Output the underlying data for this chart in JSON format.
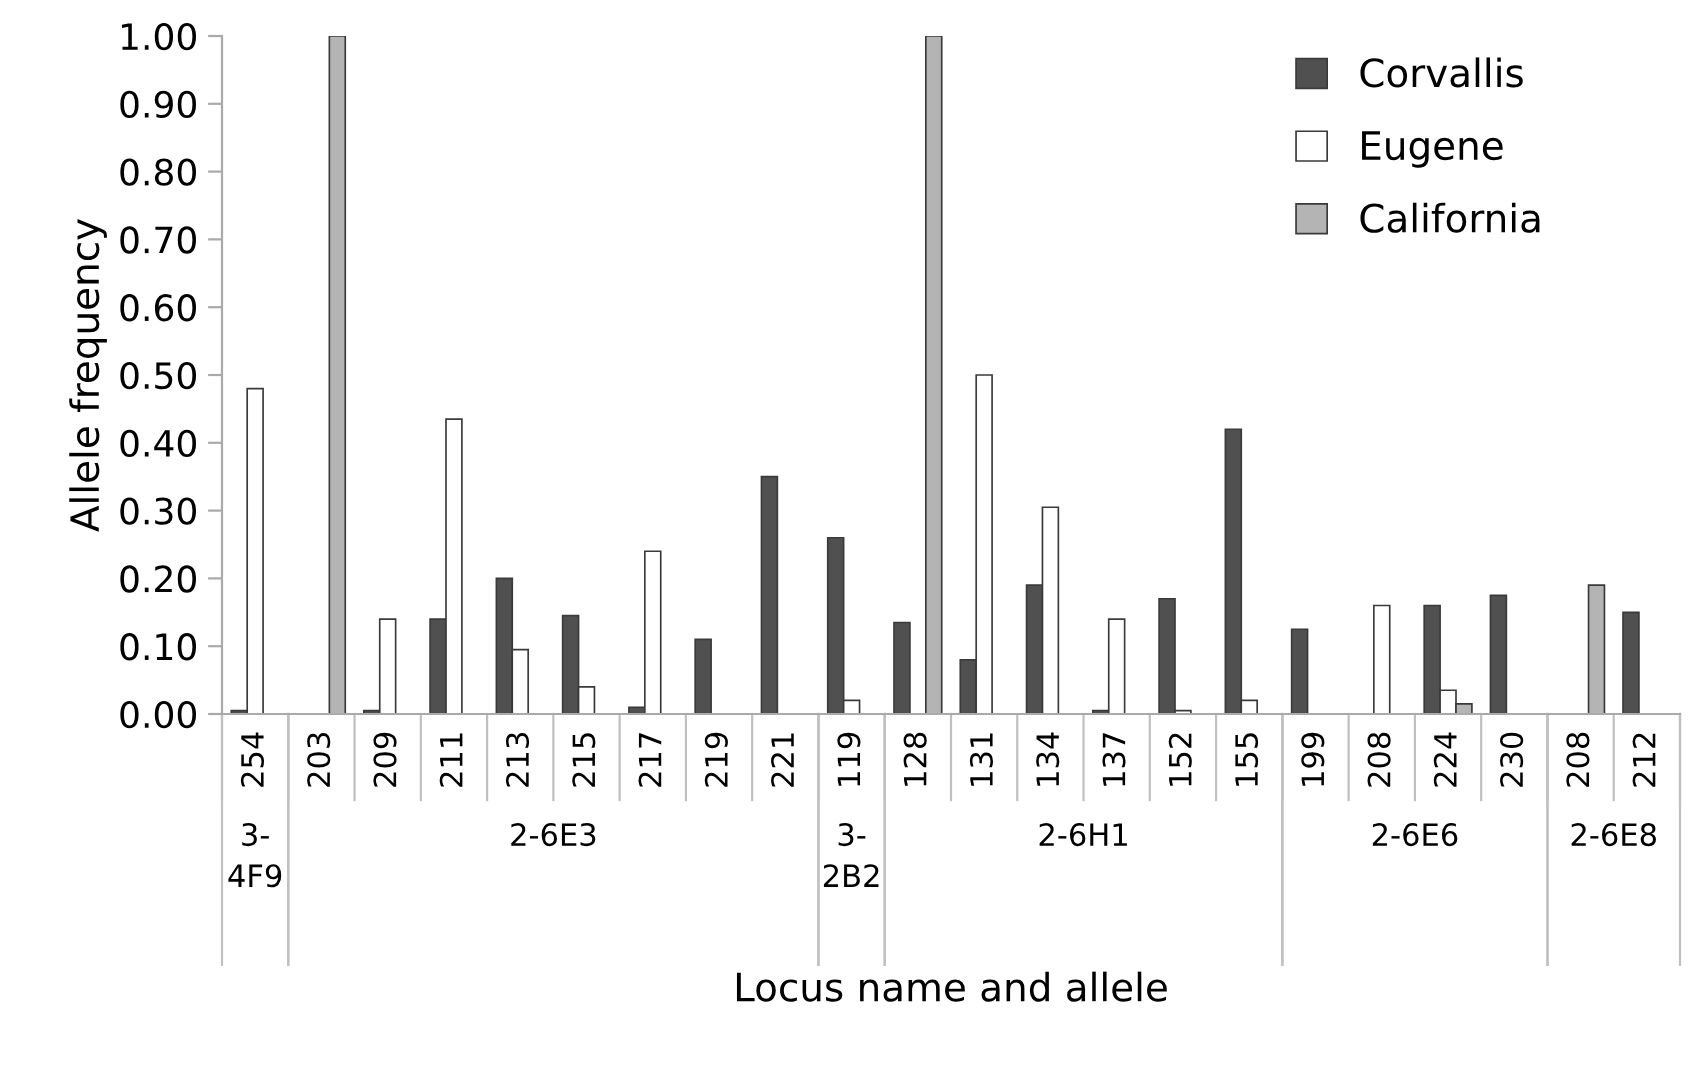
{
  "chart_data": {
    "type": "bar",
    "xlabel": "Locus name and allele",
    "ylabel": "Allele frequency",
    "categories": [
      "254",
      "203",
      "209",
      "211",
      "213",
      "215",
      "217",
      "219",
      "221",
      "119",
      "128",
      "131",
      "134",
      "137",
      "152",
      "155",
      "199",
      "208",
      "224",
      "230",
      "208",
      "212"
    ],
    "series": [
      {
        "name": "Corvallis",
        "color": "#505050",
        "values": [
          0.005,
          null,
          0.005,
          0.14,
          0.2,
          0.145,
          0.01,
          0.11,
          0.35,
          0.26,
          0.135,
          0.08,
          0.19,
          0.005,
          0.17,
          0.42,
          0.125,
          null,
          0.16,
          0.175,
          null,
          0.15
        ]
      },
      {
        "name": "Eugene",
        "color": "#ffffff",
        "values": [
          0.48,
          null,
          0.14,
          0.435,
          0.095,
          0.04,
          0.24,
          null,
          null,
          0.02,
          null,
          0.5,
          0.305,
          0.14,
          0.005,
          0.02,
          null,
          0.16,
          0.035,
          null,
          null,
          null
        ]
      },
      {
        "name": "California",
        "color": "#b4b4b4",
        "values": [
          null,
          1.0,
          null,
          null,
          null,
          null,
          null,
          null,
          null,
          null,
          1.0,
          null,
          null,
          null,
          null,
          null,
          null,
          null,
          0.015,
          null,
          0.19,
          null
        ]
      }
    ],
    "annotations": [
      "3-\n4F9",
      "2-6E3",
      "3-\n2B2",
      "2-6H1",
      "2-6E6",
      "2-6E8"
    ],
    "ylim": [
      0,
      1.0
    ],
    "yticks": [
      {
        "value": 0,
        "label": "0.00"
      },
      {
        "value": 0.1,
        "label": "0.10"
      },
      {
        "value": 0.2,
        "label": "0.20"
      },
      {
        "value": 0.3,
        "label": "0.30"
      },
      {
        "value": 0.4,
        "label": "0.40"
      },
      {
        "value": 0.5,
        "label": "0.50"
      },
      {
        "value": 0.6,
        "label": "0.60"
      },
      {
        "value": 0.7,
        "label": "0.70"
      },
      {
        "value": 0.8,
        "label": "0.80"
      },
      {
        "value": 0.9,
        "label": "0.90"
      },
      {
        "value": 1.0,
        "label": "1.00"
      }
    ],
    "legend": "top right",
    "grid": false
  }
}
